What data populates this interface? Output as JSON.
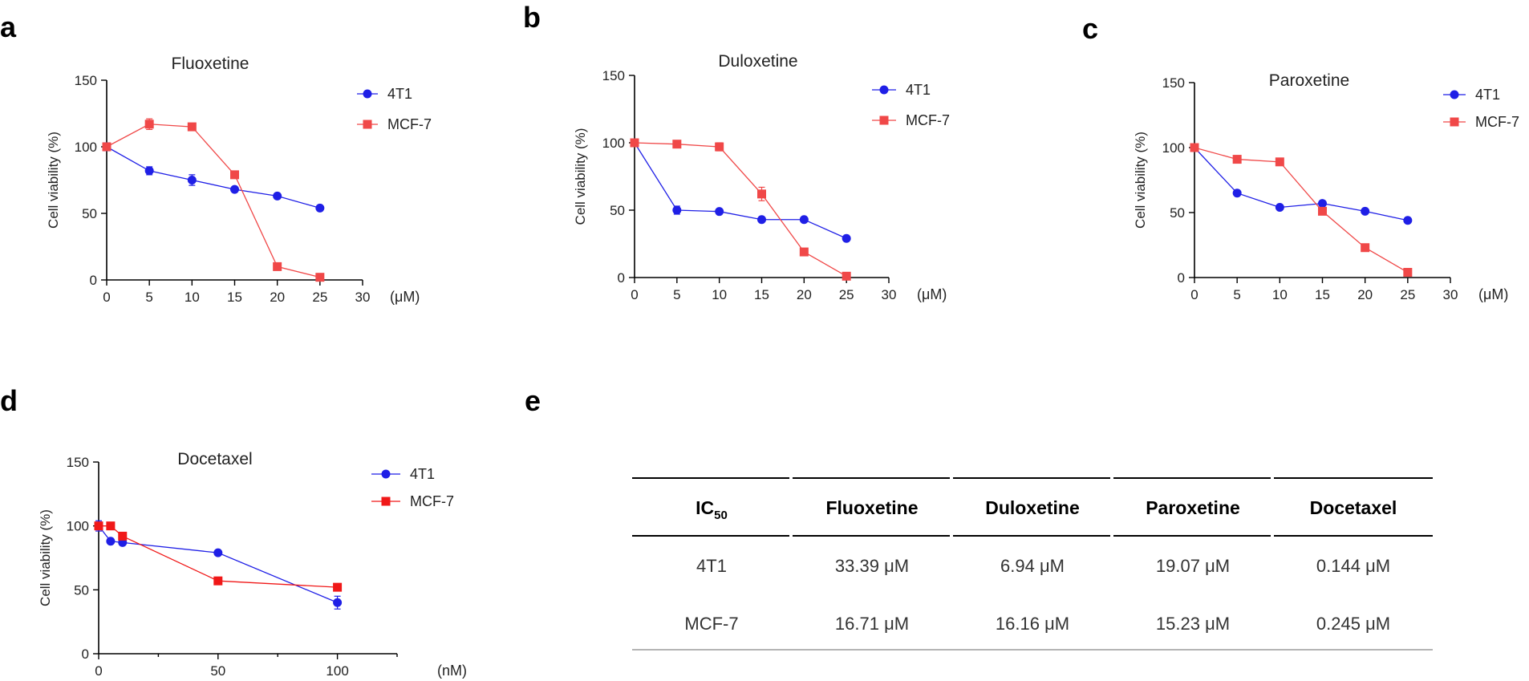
{
  "panels": [
    "a",
    "b",
    "c",
    "d",
    "e"
  ],
  "chart_data": [
    {
      "type": "line",
      "panel": "a",
      "title": "Fluoxetine",
      "ylabel": "Cell viability (%)",
      "xunit": "(μM)",
      "xlim": [
        0,
        30
      ],
      "ylim": [
        0,
        150
      ],
      "xticks": [
        0,
        5,
        10,
        15,
        20,
        25,
        30
      ],
      "yticks": [
        0,
        50,
        100,
        150
      ],
      "x": [
        0,
        5,
        10,
        15,
        20,
        25
      ],
      "series": [
        {
          "name": "4T1",
          "color": "#1f1fe6",
          "marker": "circle",
          "values": [
            100,
            82,
            75,
            68,
            63,
            54
          ],
          "errors": [
            3,
            3,
            4,
            2,
            2,
            2
          ]
        },
        {
          "name": "MCF-7",
          "color": "#f04848",
          "marker": "square",
          "values": [
            100,
            117,
            115,
            79,
            10,
            2
          ],
          "errors": [
            2,
            4,
            2,
            2,
            1,
            1
          ]
        }
      ]
    },
    {
      "type": "line",
      "panel": "b",
      "title": "Duloxetine",
      "ylabel": "Cell viability (%)",
      "xunit": "(μM)",
      "xlim": [
        0,
        30
      ],
      "ylim": [
        0,
        150
      ],
      "xticks": [
        0,
        5,
        10,
        15,
        20,
        25,
        30
      ],
      "yticks": [
        0,
        50,
        100,
        150
      ],
      "x": [
        0,
        5,
        10,
        15,
        20,
        25
      ],
      "series": [
        {
          "name": "4T1",
          "color": "#1f1fe6",
          "marker": "circle",
          "values": [
            100,
            50,
            49,
            43,
            43,
            29
          ],
          "errors": [
            2,
            3,
            1,
            1,
            1,
            1
          ]
        },
        {
          "name": "MCF-7",
          "color": "#f04848",
          "marker": "square",
          "values": [
            100,
            99,
            97,
            62,
            19,
            1
          ],
          "errors": [
            1,
            1,
            3,
            5,
            1,
            1
          ]
        }
      ]
    },
    {
      "type": "line",
      "panel": "c",
      "title": "Paroxetine",
      "ylabel": "Cell viability (%)",
      "xunit": "(μM)",
      "xlim": [
        0,
        30
      ],
      "ylim": [
        0,
        150
      ],
      "xticks": [
        0,
        5,
        10,
        15,
        20,
        25,
        30
      ],
      "yticks": [
        0,
        50,
        100,
        150
      ],
      "x": [
        0,
        5,
        10,
        15,
        20,
        25
      ],
      "series": [
        {
          "name": "4T1",
          "color": "#1f1fe6",
          "marker": "circle",
          "values": [
            100,
            65,
            54,
            57,
            51,
            44
          ],
          "errors": [
            1,
            1,
            1,
            1,
            1,
            1
          ]
        },
        {
          "name": "MCF-7",
          "color": "#f04848",
          "marker": "square",
          "values": [
            100,
            91,
            89,
            51,
            23,
            4
          ],
          "errors": [
            1,
            1,
            1,
            2,
            1,
            1
          ]
        }
      ]
    },
    {
      "type": "line",
      "panel": "d",
      "title": "Docetaxel",
      "ylabel": "Cell viability (%)",
      "xunit": "(nM)",
      "xlim": [
        0,
        125
      ],
      "ylim": [
        0,
        150
      ],
      "xticks": [
        0,
        50,
        100
      ],
      "yticks": [
        0,
        50,
        100,
        150
      ],
      "x": [
        0,
        5,
        10,
        50,
        100
      ],
      "series": [
        {
          "name": "4T1",
          "color": "#1f1fe6",
          "marker": "circle",
          "values": [
            100,
            88,
            87,
            79,
            40
          ],
          "errors": [
            4,
            1,
            2,
            1,
            5
          ]
        },
        {
          "name": "MCF-7",
          "color": "#f01818",
          "marker": "square",
          "values": [
            100,
            100,
            92,
            57,
            52
          ],
          "errors": [
            1,
            1,
            2,
            1,
            1
          ]
        }
      ]
    },
    {
      "type": "table",
      "panel": "e",
      "header": {
        "label": "IC",
        "subscript": "50"
      },
      "columns": [
        "Fluoxetine",
        "Duloxetine",
        "Paroxetine",
        "Docetaxel"
      ],
      "rows": [
        {
          "label": "4T1",
          "cells": [
            "33.39 μM",
            "6.94 μM",
            "19.07 μM",
            "0.144 μM"
          ]
        },
        {
          "label": "MCF-7",
          "cells": [
            "16.71 μM",
            "16.16 μM",
            "15.23 μM",
            "0.245 μM"
          ]
        }
      ]
    }
  ]
}
